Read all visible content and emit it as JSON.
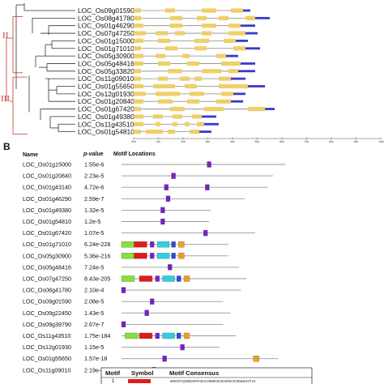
{
  "panel_a": {
    "genes": [
      {
        "name": "LOC_Os09g01590",
        "exons": [
          [
            0.0,
            0.03
          ],
          [
            0.13,
            0.17
          ],
          [
            0.28,
            0.34
          ],
          [
            0.4,
            0.45
          ]
        ],
        "utr": [
          [
            0.45,
            0.48
          ]
        ]
      },
      {
        "name": "LOC_Os08g41780",
        "exons": [
          [
            0.0,
            0.03
          ],
          [
            0.15,
            0.2
          ],
          [
            0.26,
            0.3
          ],
          [
            0.35,
            0.39
          ],
          [
            0.46,
            0.5
          ]
        ],
        "utr": [
          [
            0.5,
            0.56
          ]
        ]
      },
      {
        "name": "LOC_Os01g46290",
        "exons": [
          [
            0.0,
            0.04
          ],
          [
            0.15,
            0.2
          ],
          [
            0.28,
            0.34
          ],
          [
            0.39,
            0.44
          ]
        ],
        "utr": [
          [
            0.44,
            0.5
          ]
        ]
      },
      {
        "name": "LOC_Os07g47250",
        "exons": [
          [
            0.0,
            0.05
          ],
          [
            0.09,
            0.14
          ],
          [
            0.17,
            0.21
          ],
          [
            0.28,
            0.32
          ],
          [
            0.39,
            0.46
          ]
        ],
        "utr": [
          [
            0.46,
            0.51
          ]
        ]
      },
      {
        "name": "LOC_Os01g15000",
        "exons": [
          [
            0.0,
            0.04
          ],
          [
            0.1,
            0.15
          ],
          [
            0.25,
            0.31
          ],
          [
            0.37,
            0.42
          ]
        ],
        "utr": [
          [
            0.42,
            0.47
          ]
        ]
      },
      {
        "name": "LOC_Os01g71010",
        "exons": [
          [
            0.0,
            0.03
          ],
          [
            0.13,
            0.18
          ],
          [
            0.25,
            0.3
          ],
          [
            0.41,
            0.46
          ]
        ],
        "utr": [
          [
            0.46,
            0.52
          ]
        ]
      },
      {
        "name": "LOC_Os05g30900",
        "exons": [
          [
            0.0,
            0.04
          ],
          [
            0.09,
            0.13
          ],
          [
            0.2,
            0.23
          ],
          [
            0.34,
            0.38
          ]
        ],
        "utr": [
          [
            0.38,
            0.43
          ]
        ]
      },
      {
        "name": "LOC_Os05g48416",
        "exons": [
          [
            0.0,
            0.04
          ],
          [
            0.1,
            0.15
          ],
          [
            0.22,
            0.27
          ],
          [
            0.36,
            0.44
          ]
        ],
        "utr": [
          [
            0.44,
            0.5
          ]
        ]
      },
      {
        "name": "LOC_Os05g33820",
        "exons": [
          [
            0.0,
            0.03
          ],
          [
            0.14,
            0.2
          ],
          [
            0.28,
            0.36
          ],
          [
            0.39,
            0.43
          ]
        ],
        "utr": [
          [
            0.43,
            0.5
          ]
        ]
      },
      {
        "name": "LOC_Os11g09010",
        "exons": [
          [
            0.0,
            0.03
          ],
          [
            0.1,
            0.14
          ],
          [
            0.19,
            0.23
          ],
          [
            0.25,
            0.28
          ],
          [
            0.35,
            0.4
          ]
        ],
        "utr": [
          [
            0.4,
            0.46
          ]
        ]
      },
      {
        "name": "LOC_Os01g55650",
        "exons": [
          [
            0.0,
            0.04
          ],
          [
            0.08,
            0.17
          ],
          [
            0.21,
            0.26
          ],
          [
            0.35,
            0.47
          ]
        ],
        "utr": [
          [
            0.47,
            0.54
          ]
        ]
      },
      {
        "name": "LOC_Os12g01930",
        "exons": [
          [
            0.0,
            0.05
          ],
          [
            0.09,
            0.19
          ],
          [
            0.23,
            0.29
          ],
          [
            0.36,
            0.41
          ]
        ],
        "utr": [
          [
            0.41,
            0.46
          ]
        ]
      },
      {
        "name": "LOC_Os01g20840",
        "exons": [
          [
            0.0,
            0.04
          ],
          [
            0.1,
            0.16
          ],
          [
            0.22,
            0.27
          ],
          [
            0.34,
            0.4
          ]
        ],
        "utr": [
          [
            0.4,
            0.45
          ]
        ]
      },
      {
        "name": "LOC_Os01g67420",
        "exons": [
          [
            0.0,
            0.03
          ],
          [
            0.15,
            0.21
          ],
          [
            0.29,
            0.37
          ],
          [
            0.47,
            0.54
          ]
        ],
        "utr": [
          [
            0.54,
            0.58
          ]
        ]
      },
      {
        "name": "LOC_Os01g49380",
        "exons": [
          [
            0.0,
            0.04
          ],
          [
            0.08,
            0.12
          ],
          [
            0.16,
            0.2
          ],
          [
            0.24,
            0.28
          ]
        ],
        "utr": [
          [
            0.28,
            0.34
          ]
        ]
      },
      {
        "name": "LOC_Os11g43510",
        "exons": [
          [
            0.0,
            0.04
          ],
          [
            0.09,
            0.11
          ],
          [
            0.16,
            0.18
          ],
          [
            0.21,
            0.23
          ],
          [
            0.26,
            0.29
          ]
        ],
        "utr": [
          [
            0.29,
            0.35
          ]
        ]
      },
      {
        "name": "LOC_Os01g54810",
        "exons": [
          [
            0.0,
            0.03
          ],
          [
            0.05,
            0.12
          ],
          [
            0.14,
            0.17
          ],
          [
            0.23,
            0.27
          ]
        ],
        "utr": [
          [
            0.27,
            0.32
          ]
        ]
      }
    ],
    "groups": [
      "II",
      "III"
    ],
    "axis_ticks": [
      "0kb",
      "1kb",
      "2kb",
      "3kb",
      "4kb",
      "5kb",
      "6kb",
      "7kb",
      "8kb",
      "9kb",
      "10kb"
    ],
    "colors": {
      "exon": "#f0cf6a",
      "utr": "#3a3ac8",
      "intron": "#8a8a8a",
      "tree": "#c0392b"
    }
  },
  "panel_b": {
    "label": "B",
    "header": {
      "name": "Name",
      "pvalue": "p-value",
      "locations": "Motif Locations"
    },
    "rows": [
      {
        "name": "LOC_Os01g15000",
        "p": "1.55e-6",
        "len": 0.92,
        "motifs": [
          {
            "id": 5,
            "pos": 0.48
          }
        ]
      },
      {
        "name": "LOC_Os01g20840",
        "p": "2.23e-5",
        "len": 0.85,
        "motifs": [
          {
            "id": 5,
            "pos": 0.28
          }
        ]
      },
      {
        "name": "LOC_Os01g43140",
        "p": "4.72e-6",
        "len": 0.82,
        "motifs": [
          {
            "id": 5,
            "pos": 0.24
          },
          {
            "id": 5,
            "pos": 0.47
          }
        ]
      },
      {
        "name": "LOC_Os01g46290",
        "p": "2.59e-7",
        "len": 0.69,
        "motifs": [
          {
            "id": 5,
            "pos": 0.25
          }
        ]
      },
      {
        "name": "LOC_Os01g49380",
        "p": "1.32e-5",
        "len": 0.5,
        "motifs": [
          {
            "id": 5,
            "pos": 0.22
          }
        ]
      },
      {
        "name": "LOC_Os01g54810",
        "p": "1.2e-5",
        "len": 0.49,
        "motifs": [
          {
            "id": 5,
            "pos": 0.22
          }
        ]
      },
      {
        "name": "LOC_Os01g67420",
        "p": "1.07e-5",
        "len": 0.75,
        "motifs": [
          {
            "id": 5,
            "pos": 0.46
          }
        ]
      },
      {
        "name": "LOC_Os01g71010",
        "p": "6.24e-228",
        "len": 0.6,
        "motifs": [
          {
            "id": 2,
            "pos": 0.0
          },
          {
            "id": 1,
            "pos": 0.07
          },
          {
            "id": 5,
            "pos": 0.16
          },
          {
            "id": 3,
            "pos": 0.2
          },
          {
            "id": 4,
            "pos": 0.28
          },
          {
            "id": 6,
            "pos": 0.32
          }
        ]
      },
      {
        "name": "LOC_Os05g30900",
        "p": "5.36e-216",
        "len": 0.6,
        "motifs": [
          {
            "id": 2,
            "pos": 0.0
          },
          {
            "id": 1,
            "pos": 0.07
          },
          {
            "id": 5,
            "pos": 0.16
          },
          {
            "id": 3,
            "pos": 0.2
          },
          {
            "id": 4,
            "pos": 0.28
          },
          {
            "id": 6,
            "pos": 0.32
          }
        ]
      },
      {
        "name": "LOC_Os05g48416",
        "p": "7.24e-5",
        "len": 0.66,
        "motifs": [
          {
            "id": 5,
            "pos": 0.26
          }
        ]
      },
      {
        "name": "LOC_Os07g47250",
        "p": "8.43e-205",
        "len": 0.7,
        "motifs": [
          {
            "id": 2,
            "pos": 0.0
          },
          {
            "id": 1,
            "pos": 0.1
          },
          {
            "id": 5,
            "pos": 0.19
          },
          {
            "id": 3,
            "pos": 0.23
          },
          {
            "id": 4,
            "pos": 0.31
          },
          {
            "id": 6,
            "pos": 0.35
          }
        ]
      },
      {
        "name": "LOC_Os08g41780",
        "p": "2.10e-4",
        "len": 0.67,
        "motifs": [
          {
            "id": 5,
            "pos": 0.0
          }
        ]
      },
      {
        "name": "LOC_Os09g01590",
        "p": "2.08e-5",
        "len": 0.57,
        "motifs": [
          {
            "id": 5,
            "pos": 0.16
          }
        ]
      },
      {
        "name": "LOC_Os09g22450",
        "p": "1.43e-5",
        "len": 0.61,
        "motifs": [
          {
            "id": 5,
            "pos": 0.13
          }
        ]
      },
      {
        "name": "LOC_Os09g39790",
        "p": "2.67e-7",
        "len": 0.57,
        "motifs": [
          {
            "id": 5,
            "pos": 0.0
          }
        ]
      },
      {
        "name": "LOC_Os11g43510",
        "p": "1.75e-184",
        "len": 0.64,
        "motifs": [
          {
            "id": 2,
            "pos": 0.02
          },
          {
            "id": 1,
            "pos": 0.1
          },
          {
            "id": 5,
            "pos": 0.19
          },
          {
            "id": 3,
            "pos": 0.23
          },
          {
            "id": 4,
            "pos": 0.31
          },
          {
            "id": 6,
            "pos": 0.35
          }
        ]
      },
      {
        "name": "LOC_Os12g01930",
        "p": "1.15e-5",
        "len": 0.55,
        "motifs": [
          {
            "id": 5,
            "pos": 0.33
          }
        ]
      },
      {
        "name": "LOC_Os01g55650",
        "p": "1.57e-18",
        "len": 0.88,
        "motifs": [
          {
            "id": 5,
            "pos": 0.23
          },
          {
            "id": 6,
            "pos": 0.74
          }
        ]
      },
      {
        "name": "LOC_Os11g09010",
        "p": "2.19e-8",
        "len": 0.42,
        "motifs": [
          {
            "id": 5,
            "pos": 0.17
          }
        ]
      }
    ],
    "motif_colors": {
      "1": "#e01b1b",
      "2": "#86e03a",
      "3": "#2fd0e0",
      "4": "#2a4bd8",
      "5": "#7a1fc8",
      "6": "#f0a020"
    },
    "legend": {
      "headers": [
        "Motif",
        "Symbol",
        "Motif Consensus"
      ],
      "first_motif": "1",
      "first_consensus": "WHDCDTQSWEDSRFHDSLDDWRSGGRAKMSCHVNWHWIHTLK"
    }
  }
}
